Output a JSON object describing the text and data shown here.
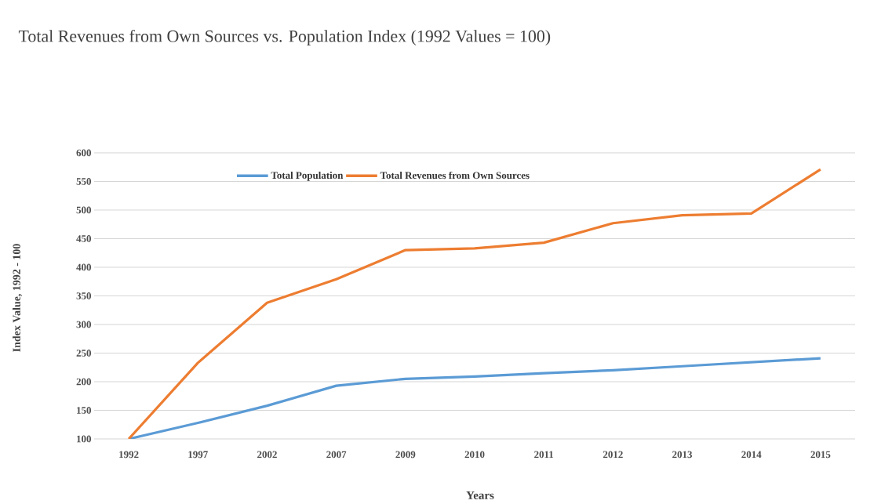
{
  "chart_data": {
    "type": "line",
    "title": "Total Revenues from Own Sources vs. Population Index (1992 Values = 100)",
    "xlabel": "Years",
    "ylabel": "Index Value, 1992 - 100",
    "categories": [
      "1992",
      "1997",
      "2002",
      "2007",
      "2009",
      "2010",
      "2011",
      "2012",
      "2013",
      "2014",
      "2015"
    ],
    "series": [
      {
        "name": "Total Population",
        "color": "#5b9bd5",
        "values": [
          100,
          128,
          158,
          193,
          205,
          209,
          215,
          220,
          227,
          234,
          241
        ]
      },
      {
        "name": "Total Revenues from Own Sources",
        "color": "#ed7d31",
        "values": [
          100,
          233,
          338,
          379,
          430,
          433,
          443,
          477,
          491,
          494,
          571
        ]
      }
    ],
    "ylim": [
      100,
      600
    ],
    "yticks": [
      100,
      150,
      200,
      250,
      300,
      350,
      400,
      450,
      500,
      550,
      600
    ],
    "grid": "y",
    "legend": "top",
    "marker": "none",
    "line_style": "solid"
  }
}
